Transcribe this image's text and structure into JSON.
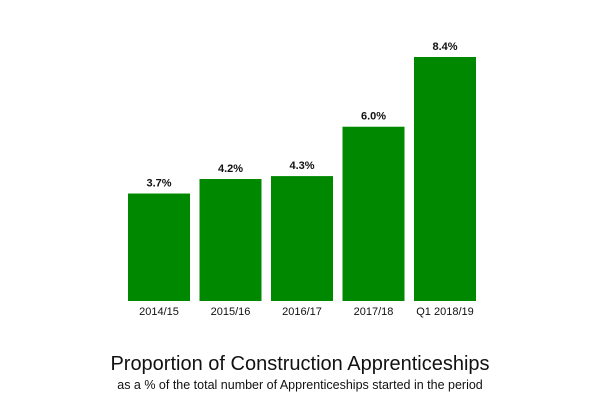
{
  "chart_data": {
    "type": "bar",
    "title": "Proportion of Construction Apprenticeships",
    "subtitle": "as a % of the total number of Apprenticeships started in the period",
    "categories": [
      "2014/15",
      "2015/16",
      "2016/17",
      "2017/18",
      "Q1 2018/19"
    ],
    "values": [
      3.7,
      4.2,
      4.3,
      6.0,
      8.4
    ],
    "data_labels": [
      "3.7%",
      "4.2%",
      "4.3%",
      "6.0%",
      "8.4%"
    ],
    "ylim": [
      0,
      8.4
    ],
    "grid": false,
    "bar_color": "#008800"
  }
}
